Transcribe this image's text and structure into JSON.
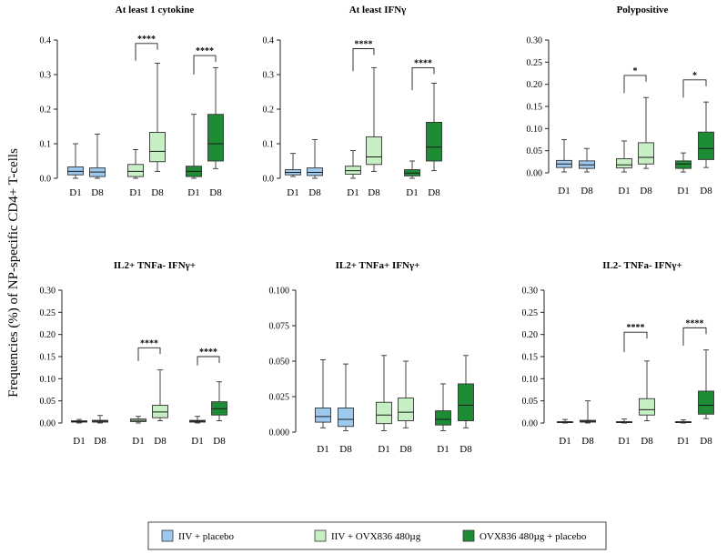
{
  "ylabel": "Frequencies (%) of NP-specific CD4+ T-cells",
  "colors": {
    "light_blue": "#9ec9ee",
    "light_green": "#c6efc4",
    "dark_green": "#1e8c35",
    "whisker": "#333333",
    "median": "#1a1a1a"
  },
  "legend": [
    {
      "label": "IIV + placebo",
      "color": "#9ec9ee"
    },
    {
      "label": "IIV + OVX836 480µg",
      "color": "#c6efc4"
    },
    {
      "label": "OVX836 480µg + placebo",
      "color": "#1e8c35"
    }
  ],
  "chart_data": [
    {
      "type": "box",
      "title": "At least 1 cytokine",
      "ylim": [
        0,
        0.4
      ],
      "yticks": [
        "0.0",
        "0.1",
        "0.2",
        "0.3",
        "0.4"
      ],
      "categories": [
        "D1",
        "D8",
        "D1",
        "D8",
        "D1",
        "D8"
      ],
      "groups": [
        "IIV + placebo",
        "IIV + placebo",
        "IIV + OVX836 480µg",
        "IIV + OVX836 480µg",
        "OVX836 480µg + placebo",
        "OVX836 480µg + placebo"
      ],
      "boxes": [
        {
          "min": 0.0,
          "q1": 0.01,
          "median": 0.02,
          "q3": 0.033,
          "max": 0.1
        },
        {
          "min": 0.0,
          "q1": 0.005,
          "median": 0.018,
          "q3": 0.03,
          "max": 0.128
        },
        {
          "min": 0.0,
          "q1": 0.005,
          "median": 0.02,
          "q3": 0.04,
          "max": 0.083
        },
        {
          "min": 0.02,
          "q1": 0.048,
          "median": 0.078,
          "q3": 0.133,
          "max": 0.333
        },
        {
          "min": 0.0,
          "q1": 0.005,
          "median": 0.02,
          "q3": 0.035,
          "max": 0.185
        },
        {
          "min": 0.028,
          "q1": 0.05,
          "median": 0.1,
          "q3": 0.185,
          "max": 0.32
        }
      ],
      "significance": [
        {
          "from": 2,
          "to": 3,
          "label": "****",
          "y": 0.39,
          "y_left": 0.34
        },
        {
          "from": 4,
          "to": 5,
          "label": "****",
          "y": 0.355,
          "y_left": 0.3
        }
      ]
    },
    {
      "type": "box",
      "title": "At least IFNγ",
      "ylim": [
        0,
        0.4
      ],
      "yticks": [
        "0.0",
        "0.1",
        "0.2",
        "0.3",
        "0.4"
      ],
      "categories": [
        "D1",
        "D8",
        "D1",
        "D8",
        "D1",
        "D8"
      ],
      "groups": [
        "IIV + placebo",
        "IIV + placebo",
        "IIV + OVX836 480µg",
        "IIV + OVX836 480µg",
        "OVX836 480µg + placebo",
        "OVX836 480µg + placebo"
      ],
      "boxes": [
        {
          "min": 0.005,
          "q1": 0.01,
          "median": 0.017,
          "q3": 0.025,
          "max": 0.072
        },
        {
          "min": 0.0,
          "q1": 0.008,
          "median": 0.017,
          "q3": 0.03,
          "max": 0.112
        },
        {
          "min": 0.0,
          "q1": 0.012,
          "median": 0.022,
          "q3": 0.035,
          "max": 0.08
        },
        {
          "min": 0.02,
          "q1": 0.04,
          "median": 0.062,
          "q3": 0.12,
          "max": 0.32
        },
        {
          "min": 0.0,
          "q1": 0.007,
          "median": 0.015,
          "q3": 0.025,
          "max": 0.05
        },
        {
          "min": 0.022,
          "q1": 0.05,
          "median": 0.09,
          "q3": 0.162,
          "max": 0.275
        }
      ],
      "significance": [
        {
          "from": 2,
          "to": 3,
          "label": "****",
          "y": 0.375,
          "y_left": 0.31
        },
        {
          "from": 4,
          "to": 5,
          "label": "****",
          "y": 0.32,
          "y_left": 0.255
        }
      ]
    },
    {
      "type": "box",
      "title": "Polypositive",
      "ylim": [
        0,
        0.3
      ],
      "yticks": [
        "0.00",
        "0.05",
        "0.10",
        "0.15",
        "0.20",
        "0.25",
        "0.30"
      ],
      "categories": [
        "D1",
        "D8",
        "D1",
        "D8",
        "D1",
        "D8"
      ],
      "groups": [
        "IIV + placebo",
        "IIV + placebo",
        "IIV + OVX836 480µg",
        "IIV + OVX836 480µg",
        "OVX836 480µg + placebo",
        "OVX836 480µg + placebo"
      ],
      "boxes": [
        {
          "min": 0.002,
          "q1": 0.012,
          "median": 0.02,
          "q3": 0.028,
          "max": 0.075
        },
        {
          "min": 0.002,
          "q1": 0.01,
          "median": 0.018,
          "q3": 0.027,
          "max": 0.055
        },
        {
          "min": 0.002,
          "q1": 0.011,
          "median": 0.018,
          "q3": 0.032,
          "max": 0.072
        },
        {
          "min": 0.01,
          "q1": 0.02,
          "median": 0.035,
          "q3": 0.068,
          "max": 0.17
        },
        {
          "min": 0.002,
          "q1": 0.01,
          "median": 0.02,
          "q3": 0.027,
          "max": 0.045
        },
        {
          "min": 0.012,
          "q1": 0.03,
          "median": 0.055,
          "q3": 0.092,
          "max": 0.16
        }
      ],
      "significance": [
        {
          "from": 2,
          "to": 3,
          "label": "*",
          "y": 0.22,
          "y_left": 0.18
        },
        {
          "from": 4,
          "to": 5,
          "label": "*",
          "y": 0.21,
          "y_left": 0.17
        }
      ]
    },
    {
      "type": "box",
      "title": "IL2+ TNFa- IFNγ+",
      "ylim": [
        0,
        0.3
      ],
      "yticks": [
        "0.00",
        "0.05",
        "0.10",
        "0.15",
        "0.20",
        "0.25",
        "0.30"
      ],
      "categories": [
        "D1",
        "D8",
        "D1",
        "D8",
        "D1",
        "D8"
      ],
      "groups": [
        "IIV + placebo",
        "IIV + placebo",
        "IIV + OVX836 480µg",
        "IIV + OVX836 480µg",
        "OVX836 480µg + placebo",
        "OVX836 480µg + placebo"
      ],
      "boxes": [
        {
          "min": 0.0,
          "q1": 0.002,
          "median": 0.003,
          "q3": 0.005,
          "max": 0.008
        },
        {
          "min": 0.0,
          "q1": 0.002,
          "median": 0.004,
          "q3": 0.006,
          "max": 0.017
        },
        {
          "min": 0.0,
          "q1": 0.003,
          "median": 0.006,
          "q3": 0.009,
          "max": 0.015
        },
        {
          "min": 0.005,
          "q1": 0.012,
          "median": 0.025,
          "q3": 0.04,
          "max": 0.12
        },
        {
          "min": 0.0,
          "q1": 0.002,
          "median": 0.004,
          "q3": 0.006,
          "max": 0.015
        },
        {
          "min": 0.005,
          "q1": 0.018,
          "median": 0.032,
          "q3": 0.048,
          "max": 0.093
        }
      ],
      "significance": [
        {
          "from": 2,
          "to": 3,
          "label": "****",
          "y": 0.17,
          "y_left": 0.14
        },
        {
          "from": 4,
          "to": 5,
          "label": "****",
          "y": 0.15,
          "y_left": 0.13
        }
      ]
    },
    {
      "type": "box",
      "title": "IL2+ TNFa+ IFNγ+",
      "ylim": [
        0,
        0.1
      ],
      "yticks": [
        "0.000",
        "0.025",
        "0.050",
        "0.075",
        "0.100"
      ],
      "categories": [
        "D1",
        "D8",
        "D1",
        "D8",
        "D1",
        "D8"
      ],
      "groups": [
        "IIV + placebo",
        "IIV + placebo",
        "IIV + OVX836 480µg",
        "IIV + OVX836 480µg",
        "OVX836 480µg + placebo",
        "OVX836 480µg + placebo"
      ],
      "boxes": [
        {
          "min": 0.003,
          "q1": 0.007,
          "median": 0.011,
          "q3": 0.017,
          "max": 0.051
        },
        {
          "min": 0.001,
          "q1": 0.004,
          "median": 0.009,
          "q3": 0.017,
          "max": 0.048
        },
        {
          "min": 0.001,
          "q1": 0.006,
          "median": 0.012,
          "q3": 0.021,
          "max": 0.054
        },
        {
          "min": 0.003,
          "q1": 0.008,
          "median": 0.014,
          "q3": 0.024,
          "max": 0.05
        },
        {
          "min": 0.001,
          "q1": 0.005,
          "median": 0.009,
          "q3": 0.015,
          "max": 0.034
        },
        {
          "min": 0.003,
          "q1": 0.008,
          "median": 0.019,
          "q3": 0.034,
          "max": 0.054
        }
      ],
      "significance": []
    },
    {
      "type": "box",
      "title": "IL2- TNFa- IFNγ+",
      "ylim": [
        0,
        0.3
      ],
      "yticks": [
        "0.00",
        "0.05",
        "0.10",
        "0.15",
        "0.20",
        "0.25",
        "0.30"
      ],
      "categories": [
        "D1",
        "D8",
        "D1",
        "D8",
        "D1",
        "D8"
      ],
      "groups": [
        "IIV + placebo",
        "IIV + placebo",
        "IIV + OVX836 480µg",
        "IIV + OVX836 480µg",
        "OVX836 480µg + placebo",
        "OVX836 480µg + placebo"
      ],
      "boxes": [
        {
          "min": 0.0,
          "q1": 0.001,
          "median": 0.002,
          "q3": 0.003,
          "max": 0.008
        },
        {
          "min": 0.0,
          "q1": 0.002,
          "median": 0.004,
          "q3": 0.006,
          "max": 0.05
        },
        {
          "min": 0.0,
          "q1": 0.001,
          "median": 0.002,
          "q3": 0.003,
          "max": 0.009
        },
        {
          "min": 0.005,
          "q1": 0.018,
          "median": 0.03,
          "q3": 0.055,
          "max": 0.14
        },
        {
          "min": 0.0,
          "q1": 0.001,
          "median": 0.002,
          "q3": 0.003,
          "max": 0.007
        },
        {
          "min": 0.01,
          "q1": 0.02,
          "median": 0.04,
          "q3": 0.072,
          "max": 0.165
        }
      ],
      "significance": [
        {
          "from": 2,
          "to": 3,
          "label": "****",
          "y": 0.205,
          "y_left": 0.16
        },
        {
          "from": 4,
          "to": 5,
          "label": "****",
          "y": 0.215,
          "y_left": 0.175
        }
      ]
    }
  ]
}
